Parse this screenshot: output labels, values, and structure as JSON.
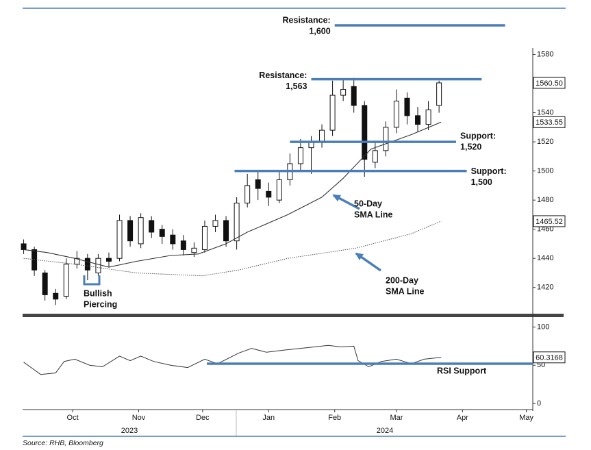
{
  "chart_data": [
    {
      "type": "candlestick",
      "x": [
        7,
        12,
        17,
        22,
        27,
        32,
        37,
        42,
        47,
        52,
        57,
        62,
        67,
        72,
        77,
        82,
        87,
        92,
        97,
        102,
        107,
        112,
        117,
        122,
        127,
        132,
        137,
        142,
        147,
        152,
        157,
        162,
        167,
        172,
        177,
        182,
        187,
        192,
        197,
        202
      ],
      "open": [
        1450,
        1446,
        1430,
        1416,
        1414,
        1436,
        1440,
        1430,
        1440,
        1440,
        1466,
        1450,
        1466,
        1460,
        1456,
        1452,
        1444,
        1446,
        1462,
        1466,
        1452,
        1478,
        1494,
        1486,
        1480,
        1494,
        1505,
        1516,
        1520,
        1528,
        1552,
        1558,
        1545,
        1506,
        1514,
        1530,
        1550,
        1538,
        1532,
        1545
      ],
      "high": [
        1453,
        1448,
        1432,
        1419,
        1440,
        1445,
        1443,
        1443,
        1444,
        1470,
        1469,
        1471,
        1469,
        1463,
        1460,
        1456,
        1451,
        1466,
        1470,
        1469,
        1482,
        1498,
        1500,
        1492,
        1500,
        1512,
        1522,
        1524,
        1532,
        1562,
        1563,
        1564,
        1548,
        1520,
        1534,
        1556,
        1554,
        1544,
        1548,
        1562
      ],
      "low": [
        1443,
        1428,
        1411,
        1408,
        1412,
        1433,
        1425,
        1428,
        1434,
        1438,
        1448,
        1447,
        1454,
        1450,
        1446,
        1442,
        1441,
        1444,
        1458,
        1448,
        1446,
        1475,
        1480,
        1476,
        1478,
        1490,
        1500,
        1498,
        1516,
        1524,
        1548,
        1540,
        1496,
        1502,
        1510,
        1526,
        1532,
        1527,
        1528,
        1540
      ],
      "close": [
        1446,
        1432,
        1415,
        1412,
        1436,
        1440,
        1432,
        1440,
        1438,
        1466,
        1452,
        1468,
        1458,
        1455,
        1450,
        1446,
        1447,
        1462,
        1466,
        1452,
        1478,
        1490,
        1488,
        1482,
        1494,
        1505,
        1516,
        1520,
        1528,
        1552,
        1556,
        1545,
        1508,
        1514,
        1530,
        1548,
        1538,
        1532,
        1542,
        1560.5
      ],
      "last_label": "1560.50",
      "up_color": "#ffffff",
      "down_color": "#111111",
      "xlim": [
        6.5,
        246
      ],
      "ylim": [
        1402,
        1608
      ],
      "yticks": [
        1420,
        1440,
        1460,
        1480,
        1500,
        1520,
        1540,
        1560,
        1580
      ],
      "overlays": [
        {
          "label": [
            "50-Day",
            "SMA Line"
          ],
          "x": [
            7,
            18,
            31,
            47,
            60,
            76,
            89,
            102,
            112,
            131,
            147,
            157,
            170,
            189,
            203
          ],
          "values": [
            1446,
            1444,
            1440,
            1434,
            1438,
            1442,
            1443,
            1450,
            1458,
            1470,
            1482,
            1495,
            1515,
            1525,
            1533.55
          ],
          "color": "#333333",
          "dotted": false,
          "last_label": "1533.55"
        },
        {
          "label": [
            "200-Day",
            "SMA Line"
          ],
          "x": [
            7,
            31,
            60,
            91,
            108,
            131,
            163,
            189,
            203
          ],
          "values": [
            1440,
            1436,
            1430,
            1428,
            1432,
            1440,
            1447,
            1457,
            1465.52
          ],
          "color": "#555555",
          "dotted": true,
          "last_label": "1465.52"
        }
      ],
      "level_color": "#4a7ebb",
      "levels": [
        {
          "label": [
            "Resistance:",
            "1,600"
          ],
          "value": 1600,
          "from": 153,
          "to": 233
        },
        {
          "label": [
            "Resistance:",
            "1,563"
          ],
          "value": 1563,
          "from": 142,
          "to": 222
        },
        {
          "label": [
            "Support:",
            "1,520"
          ],
          "value": 1520,
          "from": 132,
          "to": 210
        },
        {
          "label": [
            "Support:",
            "1,500"
          ],
          "value": 1500,
          "from": 106,
          "to": 215
        }
      ],
      "pattern_label": [
        "Bullish",
        "Piercing"
      ]
    },
    {
      "type": "line",
      "x": [
        7,
        10,
        15,
        22,
        26,
        31,
        38,
        44,
        52,
        57,
        62,
        68,
        76,
        84,
        92,
        98,
        108,
        114,
        121,
        130,
        140,
        150,
        156,
        162,
        164,
        169,
        175,
        182,
        189,
        195,
        203
      ],
      "values": [
        54,
        48,
        38,
        40,
        55,
        58,
        50,
        48,
        62,
        56,
        62,
        55,
        50,
        47,
        58,
        52,
        66,
        72,
        67,
        70,
        73,
        76,
        74,
        75,
        56,
        48,
        55,
        58,
        52,
        58,
        60.3168
      ],
      "color": "#333333",
      "last_label": "60.3168",
      "xlim": [
        6.5,
        246
      ],
      "xticks": [
        {
          "value": 30,
          "label": "Oct"
        },
        {
          "value": 61,
          "label": "Nov"
        },
        {
          "value": 91,
          "label": "Dec"
        },
        {
          "value": 122,
          "label": "Jan"
        },
        {
          "value": 153,
          "label": "Feb"
        },
        {
          "value": 182,
          "label": "Mar"
        },
        {
          "value": 213,
          "label": "Apr"
        },
        {
          "value": 243,
          "label": "May"
        }
      ],
      "year_labels": [
        "2023",
        "2024"
      ],
      "ylim": [
        -7,
        112
      ],
      "yticks": [
        0,
        50,
        100
      ],
      "level_color": "#4a7ebb",
      "levels": [
        {
          "label": [
            "RSI Support"
          ],
          "value": 52,
          "from": 93,
          "to": 246
        }
      ]
    }
  ],
  "source": "Source: RHB, Bloomberg"
}
